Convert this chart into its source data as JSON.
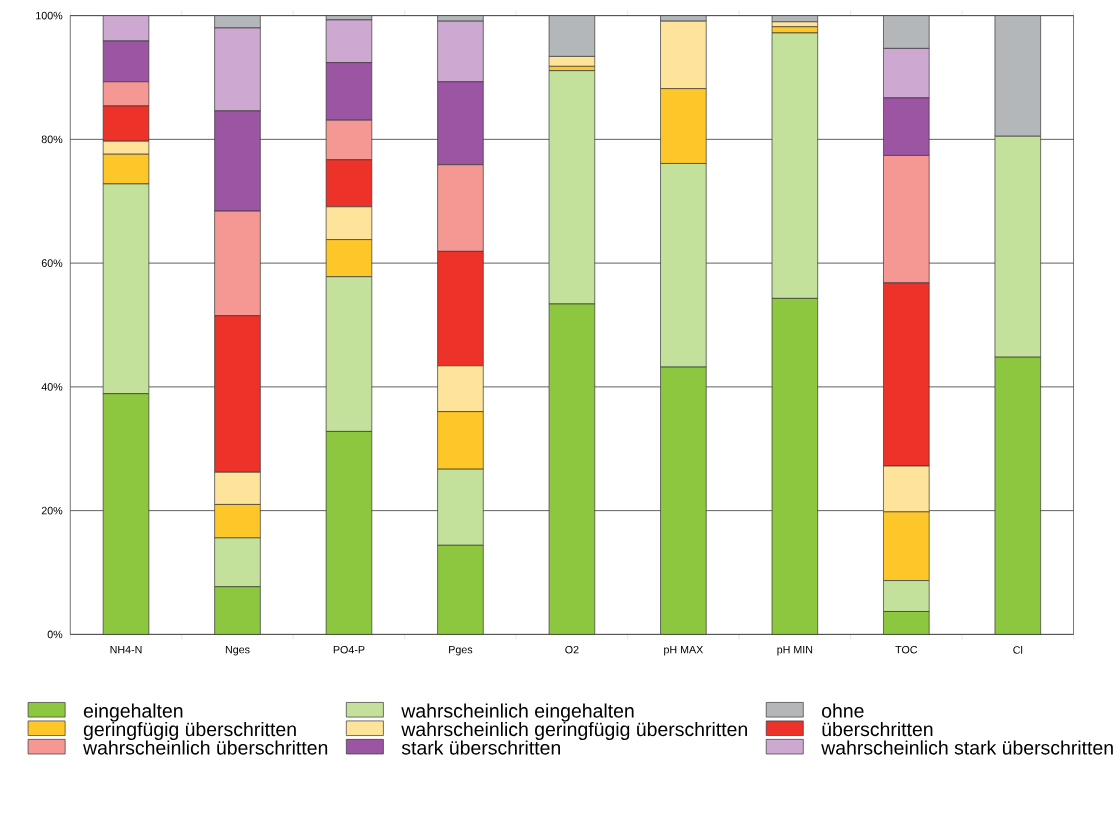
{
  "chart_data": {
    "type": "bar",
    "stacked": true,
    "categories": [
      "NH4-N",
      "Nges",
      "PO4-P",
      "Pges",
      "O2",
      "pH MAX",
      "pH MIN",
      "TOC",
      "Cl"
    ],
    "series": [
      {
        "name": "eingehalten",
        "color": "#8dc63f",
        "values": [
          38.9,
          7.7,
          32.8,
          14.4,
          53.4,
          43.2,
          54.3,
          3.7,
          44.8
        ]
      },
      {
        "name": "wahrscheinlich eingehalten",
        "color": "#c3e19b",
        "values": [
          33.9,
          7.9,
          25.0,
          12.3,
          37.7,
          32.9,
          42.9,
          5.0,
          35.7
        ]
      },
      {
        "name": "geringfügig überschritten",
        "color": "#fdc72a",
        "values": [
          4.8,
          5.4,
          6.0,
          9.3,
          0.7,
          12.1,
          1.0,
          11.1,
          0
        ]
      },
      {
        "name": "wahrscheinlich geringfügig überschritten",
        "color": "#fee39a",
        "values": [
          2.1,
          5.2,
          5.3,
          7.4,
          1.6,
          10.9,
          0.8,
          7.4,
          0
        ]
      },
      {
        "name": "überschritten",
        "color": "#ec3229",
        "values": [
          5.7,
          25.3,
          7.6,
          18.5,
          0,
          0,
          0,
          29.6,
          0
        ]
      },
      {
        "name": "wahrscheinlich überschritten",
        "color": "#f59894",
        "values": [
          3.9,
          16.9,
          6.4,
          14.0,
          0,
          0,
          0,
          20.6,
          0
        ]
      },
      {
        "name": "stark überschritten",
        "color": "#9b55a3",
        "values": [
          6.6,
          16.2,
          9.3,
          13.4,
          0,
          0,
          0,
          9.3,
          0
        ]
      },
      {
        "name": "wahrscheinlich stark überschritten",
        "color": "#cda9d1",
        "values": [
          4.1,
          13.4,
          6.9,
          9.8,
          0,
          0,
          0,
          8.0,
          0
        ]
      },
      {
        "name": "ohne",
        "color": "#b4b7b9",
        "values": [
          0,
          2.0,
          0.7,
          0.9,
          6.6,
          0.9,
          1.0,
          5.3,
          19.5
        ]
      }
    ],
    "ylim": [
      0,
      100
    ],
    "yticks": [
      {
        "value": 0,
        "label": "0%"
      },
      {
        "value": 20,
        "label": "20%"
      },
      {
        "value": 40,
        "label": "40%"
      },
      {
        "value": 60,
        "label": "60%"
      },
      {
        "value": 80,
        "label": "80%"
      },
      {
        "value": 100,
        "label": "100%"
      }
    ],
    "grid": "y",
    "legend": "bottom"
  }
}
